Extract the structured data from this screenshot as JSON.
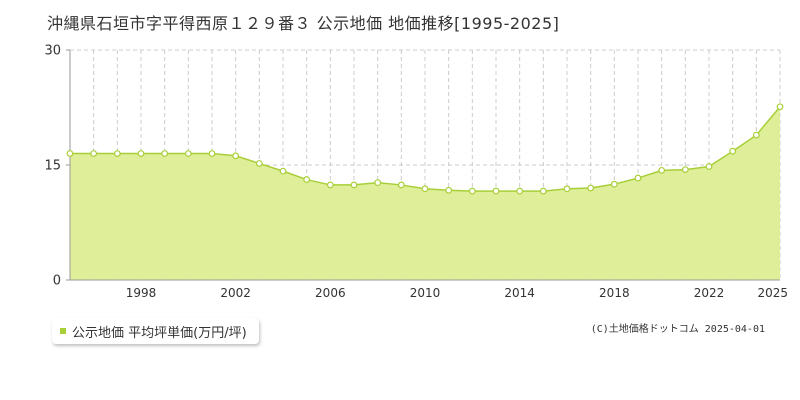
{
  "title": "沖縄県石垣市字平得西原１２９番３ 公示地価 地価推移[1995-2025]",
  "legend": {
    "label": "公示地価 平均坪単価(万円/坪)",
    "color": "#a8cf38"
  },
  "credit": "(C)土地価格ドットコム 2025-04-01",
  "colors": {
    "fill": "#dced93",
    "line": "#a8cf38",
    "point_fill": "#ffffff",
    "grid": "#cccccc",
    "axis": "#999999"
  },
  "chart_data": {
    "type": "area",
    "x": [
      1995,
      1996,
      1997,
      1998,
      1999,
      2000,
      2001,
      2002,
      2003,
      2004,
      2005,
      2006,
      2007,
      2008,
      2009,
      2010,
      2011,
      2012,
      2013,
      2014,
      2015,
      2016,
      2017,
      2018,
      2019,
      2020,
      2021,
      2022,
      2023,
      2024,
      2025
    ],
    "series": [
      {
        "values": [
          16.5,
          16.5,
          16.5,
          16.5,
          16.5,
          16.5,
          16.5,
          16.2,
          15.2,
          14.2,
          13.1,
          12.4,
          12.4,
          12.7,
          12.4,
          11.9,
          11.7,
          11.6,
          11.6,
          11.6,
          11.6,
          11.9,
          12.0,
          12.5,
          13.3,
          14.3,
          14.4,
          14.8,
          16.8,
          18.9,
          22.6
        ]
      }
    ],
    "x_ticks": [
      "1998",
      "2002",
      "2006",
      "2010",
      "2014",
      "2018",
      "2022",
      "2025"
    ],
    "y_ticks": [
      "0",
      "15",
      "30"
    ],
    "ylim": [
      0,
      30
    ],
    "xlim": [
      1995,
      2025
    ],
    "grid": true
  }
}
